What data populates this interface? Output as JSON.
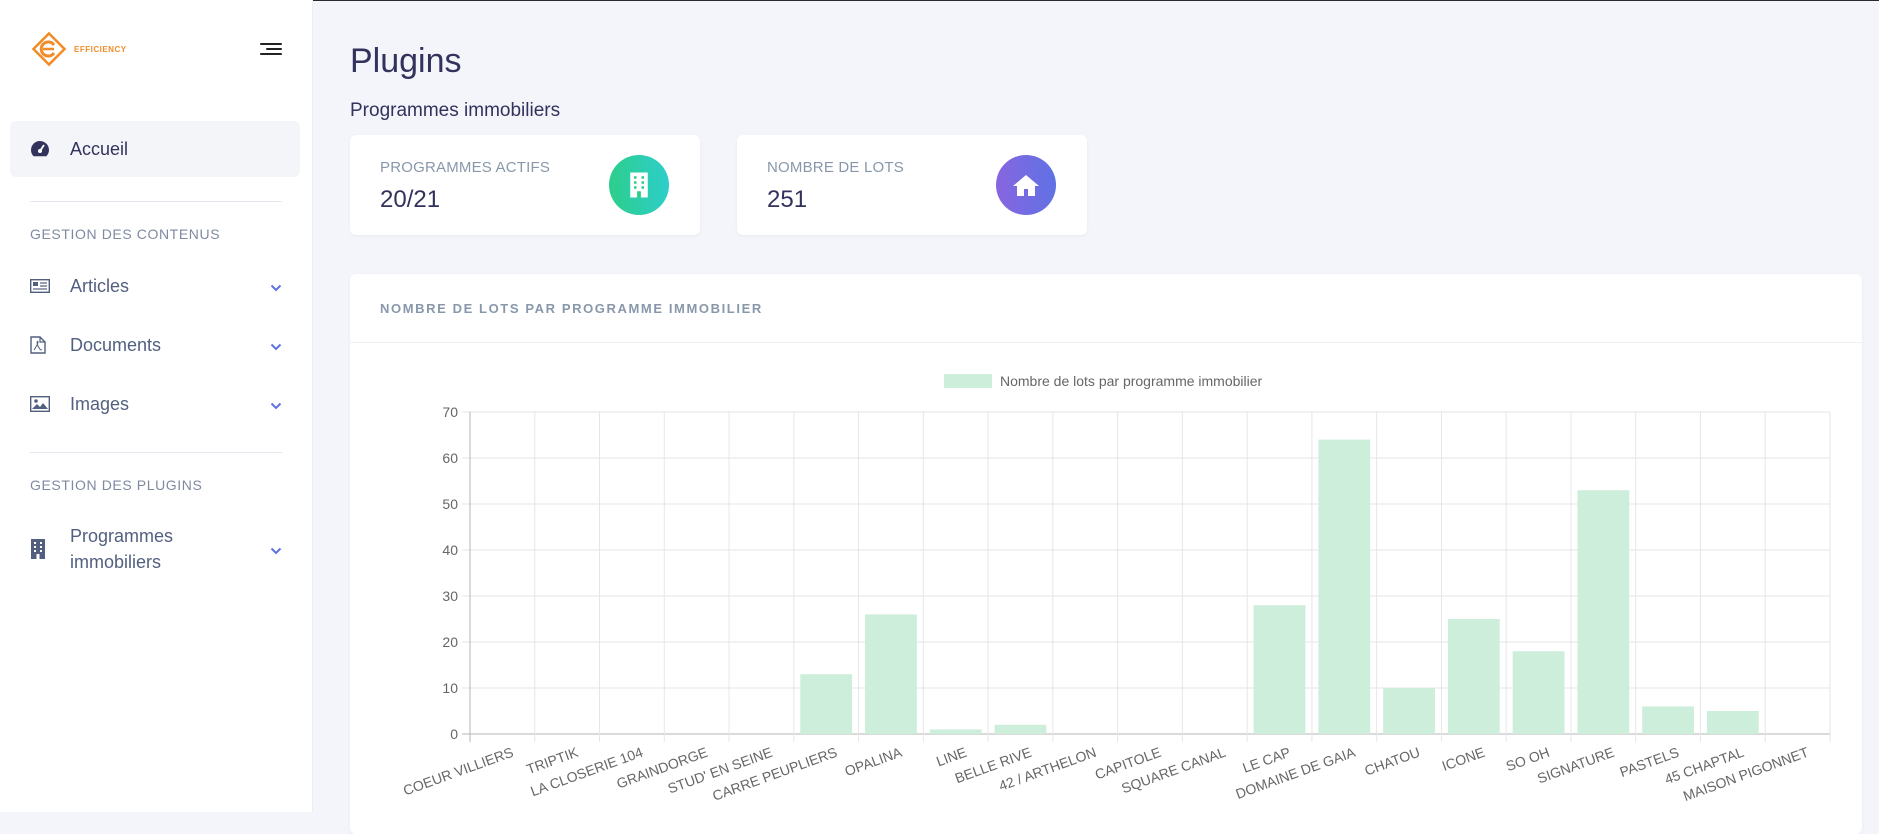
{
  "logo": {
    "text": "EFFICIENCY"
  },
  "sidebar": {
    "home": {
      "label": "Accueil"
    },
    "section_contents": "GESTION DES CONTENUS",
    "items": [
      {
        "label": "Articles"
      },
      {
        "label": "Documents"
      },
      {
        "label": "Images"
      }
    ],
    "section_plugins": "GESTION DES PLUGINS",
    "plugins": [
      {
        "label_line1": "Programmes",
        "label_line2": "immobiliers"
      }
    ]
  },
  "header": {
    "title": "Plugins",
    "subtitle": "Programmes immobiliers"
  },
  "stats": [
    {
      "label": "PROGRAMMES ACTIFS",
      "value": "20/21",
      "color": "#2dce89",
      "icon": "building-icon"
    },
    {
      "label": "NOMBRE DE LOTS",
      "value": "251",
      "color": "#825ee4",
      "icon": "home-icon"
    }
  ],
  "chart_card": {
    "title": "NOMBRE DE LOTS PAR PROGRAMME IMMOBILIER"
  },
  "chart_data": {
    "type": "bar",
    "categories": [
      "COEUR VILLIERS",
      "TRIPTIK",
      "LA CLOSERIE 104",
      "GRAINDORGE",
      "STUD' EN SEINE",
      "CARRE PEUPLIERS",
      "OPALINA",
      "LINE",
      "BELLE RIVE",
      "42 / ARTHELON",
      "CAPITOLE",
      "SQUARE CANAL",
      "LE CAP",
      "DOMAINE DE GAIA",
      "CHATOU",
      "ICONE",
      "SO OH",
      "SIGNATURE",
      "PASTELS",
      "45 CHAPTAL",
      "MAISON PIGONNET"
    ],
    "series": [
      {
        "name": "Nombre de lots par programme immobilier",
        "values": [
          0,
          0,
          0,
          0,
          0,
          13,
          26,
          1,
          2,
          0,
          0,
          0,
          28,
          64,
          10,
          25,
          18,
          53,
          6,
          5,
          0
        ]
      }
    ],
    "ylim": [
      0,
      70
    ],
    "yticks": [
      0,
      10,
      20,
      30,
      40,
      50,
      60,
      70
    ],
    "grid": true,
    "legend": "top-center",
    "bar_color": "#cdeedb"
  }
}
